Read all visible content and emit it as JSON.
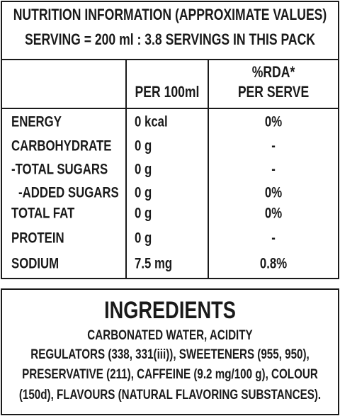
{
  "header": {
    "title": "NUTRITION INFORMATION (APPROXIMATE VALUES)",
    "serving": "SERVING = 200 ml : 3.8 SERVINGS IN THIS PACK"
  },
  "table": {
    "columns": [
      "PER 100ml",
      [
        "%RDA*",
        "PER SERVE"
      ]
    ],
    "rows": [
      [
        "ENERGY",
        "0 kcal",
        "0%"
      ],
      [
        "CARBOHYDRATE",
        "0 g",
        "-"
      ],
      [
        "-TOTAL SUGARS",
        "0 g",
        "-"
      ],
      [
        "-ADDED SUGARS",
        "0 g",
        "0%"
      ],
      [
        "TOTAL FAT",
        "0 g",
        "0%"
      ],
      [
        "PROTEIN",
        "0 g",
        "-"
      ],
      [
        "SODIUM",
        "7.5 mg",
        "0.8%"
      ]
    ]
  },
  "ingredients": {
    "title": "INGREDIENTS",
    "lines": [
      "CARBONATED WATER, ACIDITY",
      "REGULATORS (338, 331(iii)), SWEETENERS (955, 950),",
      "PRESERVATIVE (211), CAFFEINE (9.2 mg/100 g), COLOUR",
      "(150d), FLAVOURS (NATURAL FLAVORING SUBSTANCES)."
    ]
  }
}
